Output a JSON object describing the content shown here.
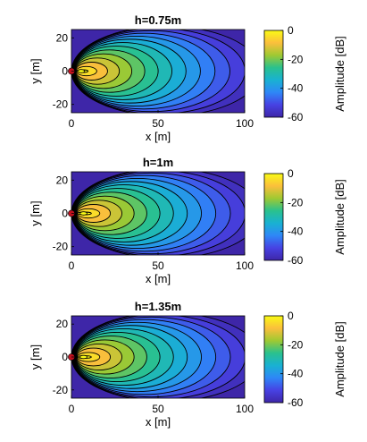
{
  "chart_data": [
    {
      "type": "heatmap",
      "title": "h=0.75m",
      "xlabel": "x [m]",
      "ylabel": "y [m]",
      "xlim": [
        0,
        100
      ],
      "ylim": [
        -25,
        25
      ],
      "xticks": [
        "0",
        "50",
        "100"
      ],
      "yticks": [
        "20",
        "0",
        "-20"
      ],
      "x_tick_values": [
        0,
        50,
        100
      ],
      "y_tick_values": [
        20,
        0,
        -20
      ],
      "colorbar": {
        "label": "Amplitude [dB]",
        "range": [
          -60,
          0
        ],
        "ticks": [
          "0",
          "-20",
          "-40",
          "-60"
        ],
        "tick_values": [
          0,
          -20,
          -40,
          -60
        ]
      },
      "source_marker": {
        "x": 0,
        "y": 0
      },
      "peak_x": 8,
      "contour_count": 14
    },
    {
      "type": "heatmap",
      "title": "h=1m",
      "xlabel": "x [m]",
      "ylabel": "y [m]",
      "xlim": [
        0,
        100
      ],
      "ylim": [
        -25,
        25
      ],
      "xticks": [
        "0",
        "50",
        "100"
      ],
      "yticks": [
        "20",
        "0",
        "-20"
      ],
      "x_tick_values": [
        0,
        50,
        100
      ],
      "y_tick_values": [
        20,
        0,
        -20
      ],
      "colorbar": {
        "label": "Amplitude [dB]",
        "range": [
          -60,
          0
        ],
        "ticks": [
          "0",
          "-20",
          "-40",
          "-60"
        ],
        "tick_values": [
          0,
          -20,
          -40,
          -60
        ]
      },
      "source_marker": {
        "x": 0,
        "y": 0
      },
      "peak_x": 10,
      "contour_count": 14
    },
    {
      "type": "heatmap",
      "title": "h=1.35m",
      "xlabel": "x [m]",
      "ylabel": "y [m]",
      "xlim": [
        0,
        100
      ],
      "ylim": [
        -25,
        25
      ],
      "xticks": [
        "0",
        "50",
        "100"
      ],
      "yticks": [
        "20",
        "0",
        "-20"
      ],
      "x_tick_values": [
        0,
        50,
        100
      ],
      "y_tick_values": [
        20,
        0,
        -20
      ],
      "colorbar": {
        "label": "Amplitude [dB]",
        "range": [
          -60,
          0
        ],
        "ticks": [
          "0",
          "-20",
          "-40",
          "-60"
        ],
        "tick_values": [
          0,
          -20,
          -40,
          -60
        ]
      },
      "source_marker": {
        "x": 0,
        "y": 0
      },
      "peak_x": 10,
      "contour_count": 14
    }
  ],
  "colormap": [
    "#3e26a8",
    "#4742e3",
    "#2e87f7",
    "#19b1d2",
    "#2ac18d",
    "#9fc932",
    "#fbbf3c",
    "#f9fb15"
  ],
  "source_marker_color": "#c0101e"
}
